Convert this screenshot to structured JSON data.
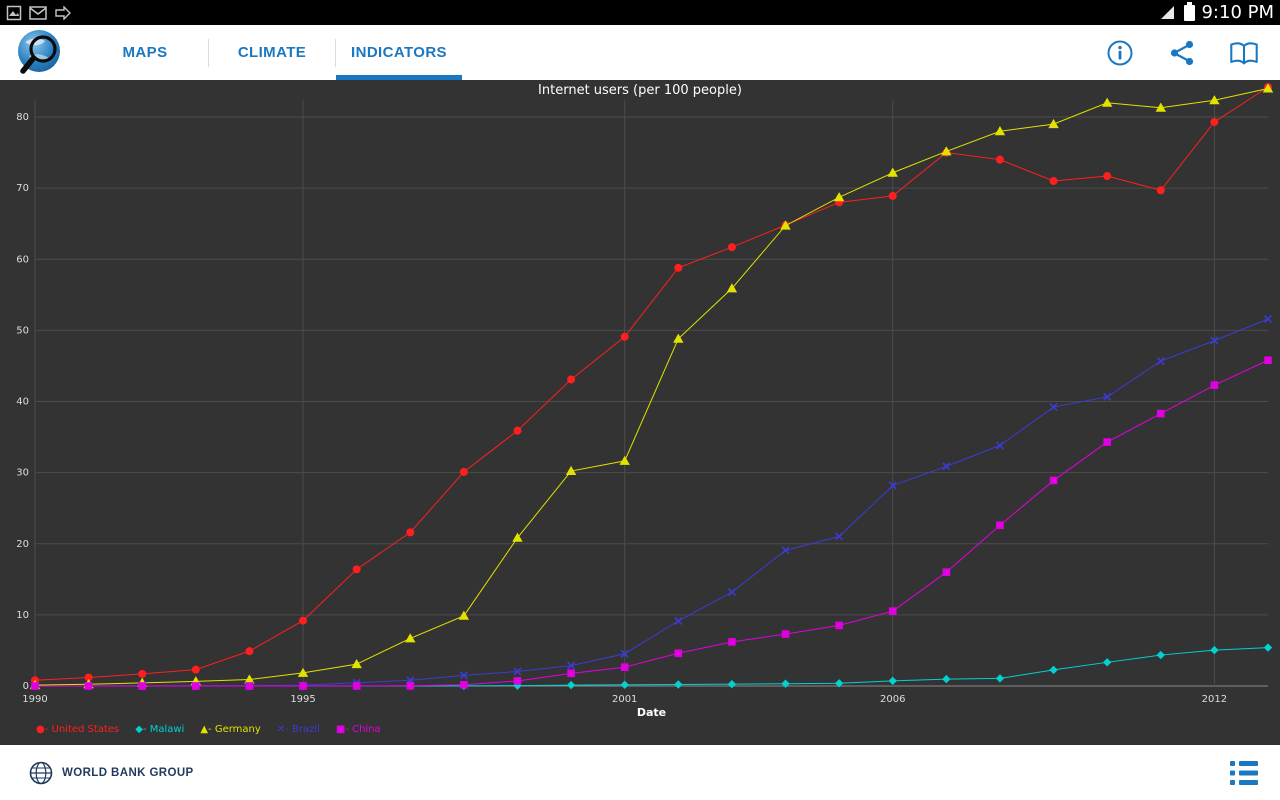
{
  "status_bar": {
    "time": "9:10 PM"
  },
  "app_bar": {
    "tabs": [
      {
        "label": "MAPS",
        "active": false
      },
      {
        "label": "CLIMATE",
        "active": false
      },
      {
        "label": "INDICATORS",
        "active": true
      }
    ],
    "accent_color": "#1a78c2"
  },
  "chart_data": {
    "type": "line",
    "title": "Internet users (per 100 people)",
    "xlabel": "Date",
    "background": "#333333",
    "grid_color": "#4c4c4c",
    "axis_color": "#8a8a8a",
    "tick_text_color": "#dcdcdc",
    "x": [
      1990,
      1991,
      1992,
      1993,
      1994,
      1995,
      1996,
      1997,
      1998,
      1999,
      2000,
      2001,
      2002,
      2003,
      2004,
      2005,
      2006,
      2007,
      2008,
      2009,
      2010,
      2011,
      2012,
      2013
    ],
    "x_ticks": [
      1990,
      1995,
      2001,
      2006,
      2012
    ],
    "y_ticks": [
      0,
      10,
      20,
      30,
      40,
      50,
      60,
      70,
      80
    ],
    "ylim": [
      0,
      85
    ],
    "legend_position": "bottom-left",
    "series": [
      {
        "name": "United States",
        "color": "#ff1f1f",
        "marker": "circle",
        "values": [
          0.8,
          1.2,
          1.7,
          2.3,
          4.9,
          9.2,
          16.4,
          21.6,
          30.1,
          35.9,
          43.1,
          49.1,
          58.8,
          61.7,
          64.8,
          68.0,
          68.9,
          75.0,
          74.0,
          71.0,
          71.7,
          69.7,
          79.3,
          84.2
        ]
      },
      {
        "name": "Malawi",
        "color": "#00d2d2",
        "marker": "diamond",
        "values": [
          0,
          0,
          0,
          0,
          0,
          0,
          0,
          0.01,
          0.02,
          0.05,
          0.13,
          0.17,
          0.21,
          0.26,
          0.32,
          0.38,
          0.72,
          0.97,
          1.07,
          2.26,
          3.33,
          4.35,
          5.05,
          5.4
        ]
      },
      {
        "name": "Germany",
        "color": "#e2e200",
        "marker": "triangle",
        "values": [
          0.13,
          0.25,
          0.44,
          0.65,
          0.91,
          1.84,
          3.07,
          6.69,
          9.87,
          20.84,
          30.22,
          31.65,
          48.82,
          55.9,
          64.73,
          68.71,
          72.16,
          75.16,
          78.0,
          79.0,
          82.0,
          81.3,
          82.35,
          84.0
        ]
      },
      {
        "name": "Brazil",
        "color": "#3c3cd4",
        "marker": "x",
        "values": [
          0,
          0.01,
          0.01,
          0.03,
          0.04,
          0.1,
          0.45,
          0.8,
          1.5,
          2.04,
          2.87,
          4.53,
          9.15,
          13.21,
          19.07,
          21.02,
          28.18,
          30.88,
          33.83,
          39.22,
          40.65,
          45.69,
          48.56,
          51.6
        ]
      },
      {
        "name": "China",
        "color": "#e100e1",
        "marker": "square",
        "values": [
          0,
          0,
          0,
          0,
          0,
          0,
          0.01,
          0.03,
          0.17,
          0.71,
          1.78,
          2.64,
          4.6,
          6.2,
          7.3,
          8.52,
          10.52,
          16.0,
          22.6,
          28.9,
          34.3,
          38.3,
          42.3,
          45.8
        ]
      }
    ]
  },
  "footer": {
    "brand": "WORLD BANK GROUP"
  }
}
